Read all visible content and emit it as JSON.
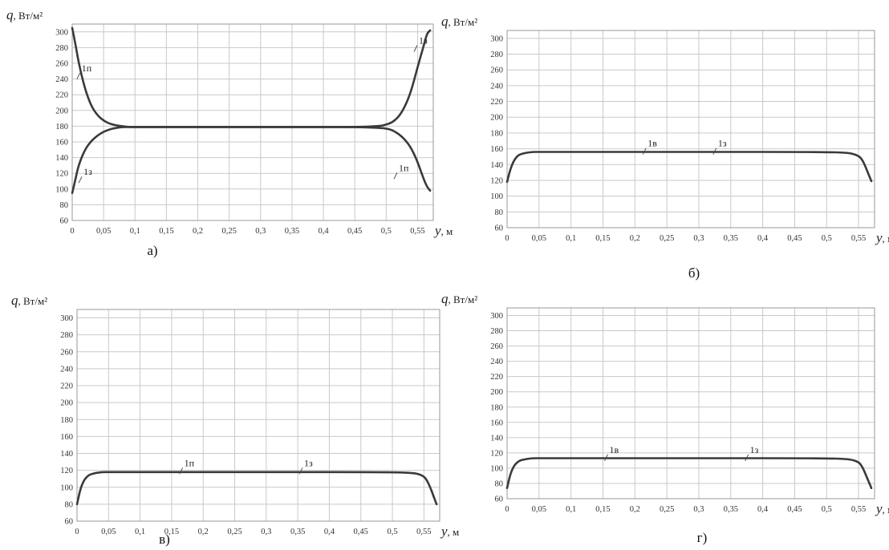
{
  "chart_data": [
    {
      "type": "line",
      "caption": "а)",
      "y_symbol": "q",
      "y_unit": ", Вт/м²",
      "x_symbol": "y",
      "x_unit": ", м",
      "xlim": [
        0,
        0.575
      ],
      "ylim": [
        60,
        310
      ],
      "x_ticks": [
        "0",
        "0,05",
        "0,1",
        "0,15",
        "0,2",
        "0,25",
        "0,3",
        "0,35",
        "0,4",
        "0,45",
        "0,5",
        "0,55"
      ],
      "y_ticks": [
        "60",
        "80",
        "100",
        "120",
        "140",
        "160",
        "180",
        "200",
        "220",
        "240",
        "260",
        "280",
        "300"
      ],
      "grid": true,
      "series": [
        {
          "x": [
            0,
            0.005,
            0.01,
            0.02,
            0.03,
            0.04,
            0.05,
            0.06,
            0.07,
            0.08,
            0.09,
            0.1,
            0.2,
            0.3,
            0.4,
            0.45,
            0.49,
            0.5,
            0.51,
            0.52,
            0.53,
            0.54,
            0.55,
            0.56,
            0.565,
            0.57
          ],
          "y": [
            305,
            285,
            262,
            228,
            206,
            194,
            187,
            183,
            181,
            180,
            179,
            179,
            179,
            179,
            179,
            179,
            180,
            182,
            185,
            192,
            205,
            225,
            255,
            283,
            298,
            302
          ]
        },
        {
          "x": [
            0,
            0.005,
            0.01,
            0.02,
            0.03,
            0.04,
            0.05,
            0.06,
            0.07,
            0.08,
            0.09,
            0.1,
            0.2,
            0.3,
            0.4,
            0.45,
            0.49,
            0.5,
            0.51,
            0.52,
            0.53,
            0.54,
            0.55,
            0.56,
            0.565,
            0.57
          ],
          "y": [
            95,
            112,
            130,
            150,
            161,
            168,
            173,
            176,
            178,
            179,
            179,
            179,
            179,
            179,
            179,
            179,
            178,
            177,
            175,
            170,
            163,
            152,
            135,
            112,
            103,
            98
          ]
        }
      ],
      "annotations": [
        {
          "text": "1п",
          "x": 0.015,
          "y": 250
        },
        {
          "text": "1з",
          "x": 0.552,
          "y": 285
        },
        {
          "text": "1з",
          "x": 0.018,
          "y": 118
        },
        {
          "text": "1п",
          "x": 0.52,
          "y": 123
        }
      ]
    },
    {
      "type": "line",
      "caption": "б)",
      "y_symbol": "q",
      "y_unit": ", Вт/м²",
      "x_symbol": "y",
      "x_unit": ", м",
      "xlim": [
        0,
        0.575
      ],
      "ylim": [
        60,
        310
      ],
      "x_ticks": [
        "0",
        "0,05",
        "0,1",
        "0,15",
        "0,2",
        "0,25",
        "0,3",
        "0,35",
        "0,4",
        "0,45",
        "0,5",
        "0,55"
      ],
      "y_ticks": [
        "60",
        "80",
        "100",
        "120",
        "140",
        "160",
        "180",
        "200",
        "220",
        "240",
        "260",
        "280",
        "300"
      ],
      "grid": true,
      "series": [
        {
          "x": [
            0,
            0.005,
            0.01,
            0.015,
            0.02,
            0.03,
            0.04,
            0.05,
            0.1,
            0.3,
            0.5,
            0.53,
            0.54,
            0.55,
            0.555,
            0.56,
            0.565,
            0.57
          ],
          "y": [
            118,
            134,
            144,
            150,
            153,
            155,
            156,
            156,
            156,
            156,
            156,
            155,
            154,
            151,
            147,
            139,
            129,
            119
          ]
        }
      ],
      "annotations": [
        {
          "text": "1в",
          "x": 0.22,
          "y": 163
        },
        {
          "text": "1з",
          "x": 0.33,
          "y": 163
        }
      ]
    },
    {
      "type": "line",
      "caption": "в)",
      "y_symbol": "q",
      "y_unit": ", Вт/м²",
      "x_symbol": "y",
      "x_unit": ", м",
      "xlim": [
        0,
        0.575
      ],
      "ylim": [
        60,
        310
      ],
      "x_ticks": [
        "0",
        "0,05",
        "0,1",
        "0,15",
        "0,2",
        "0,25",
        "0,3",
        "0,35",
        "0,4",
        "0,45",
        "0,5",
        "0,55"
      ],
      "y_ticks": [
        "60",
        "80",
        "100",
        "120",
        "140",
        "160",
        "180",
        "200",
        "220",
        "240",
        "260",
        "280",
        "300"
      ],
      "grid": true,
      "series": [
        {
          "x": [
            0,
            0.005,
            0.01,
            0.015,
            0.02,
            0.03,
            0.04,
            0.05,
            0.1,
            0.3,
            0.5,
            0.53,
            0.54,
            0.55,
            0.555,
            0.56,
            0.565,
            0.57
          ],
          "y": [
            80,
            97,
            107,
            112,
            115,
            117,
            118,
            118,
            118,
            118,
            118,
            117,
            116,
            113,
            108,
            100,
            90,
            80
          ]
        }
      ],
      "annotations": [
        {
          "text": "1п",
          "x": 0.17,
          "y": 125
        },
        {
          "text": "1з",
          "x": 0.36,
          "y": 125
        }
      ]
    },
    {
      "type": "line",
      "caption": "г)",
      "y_symbol": "q",
      "y_unit": ", Вт/м²",
      "x_symbol": "y",
      "x_unit": ", м",
      "xlim": [
        0,
        0.575
      ],
      "ylim": [
        60,
        310
      ],
      "x_ticks": [
        "0",
        "0,05",
        "0,1",
        "0,15",
        "0,2",
        "0,25",
        "0,3",
        "0,35",
        "0,4",
        "0,45",
        "0,5",
        "0,55"
      ],
      "y_ticks": [
        "60",
        "80",
        "100",
        "120",
        "140",
        "160",
        "180",
        "200",
        "220",
        "240",
        "260",
        "280",
        "300"
      ],
      "grid": true,
      "series": [
        {
          "x": [
            0,
            0.005,
            0.01,
            0.015,
            0.02,
            0.03,
            0.04,
            0.05,
            0.1,
            0.3,
            0.5,
            0.53,
            0.54,
            0.55,
            0.555,
            0.56,
            0.565,
            0.57
          ],
          "y": [
            74,
            92,
            102,
            107,
            110,
            112,
            113,
            113,
            113,
            113,
            113,
            112,
            111,
            108,
            103,
            94,
            84,
            74
          ]
        }
      ],
      "annotations": [
        {
          "text": "1в",
          "x": 0.16,
          "y": 120
        },
        {
          "text": "1з",
          "x": 0.38,
          "y": 120
        }
      ]
    }
  ]
}
